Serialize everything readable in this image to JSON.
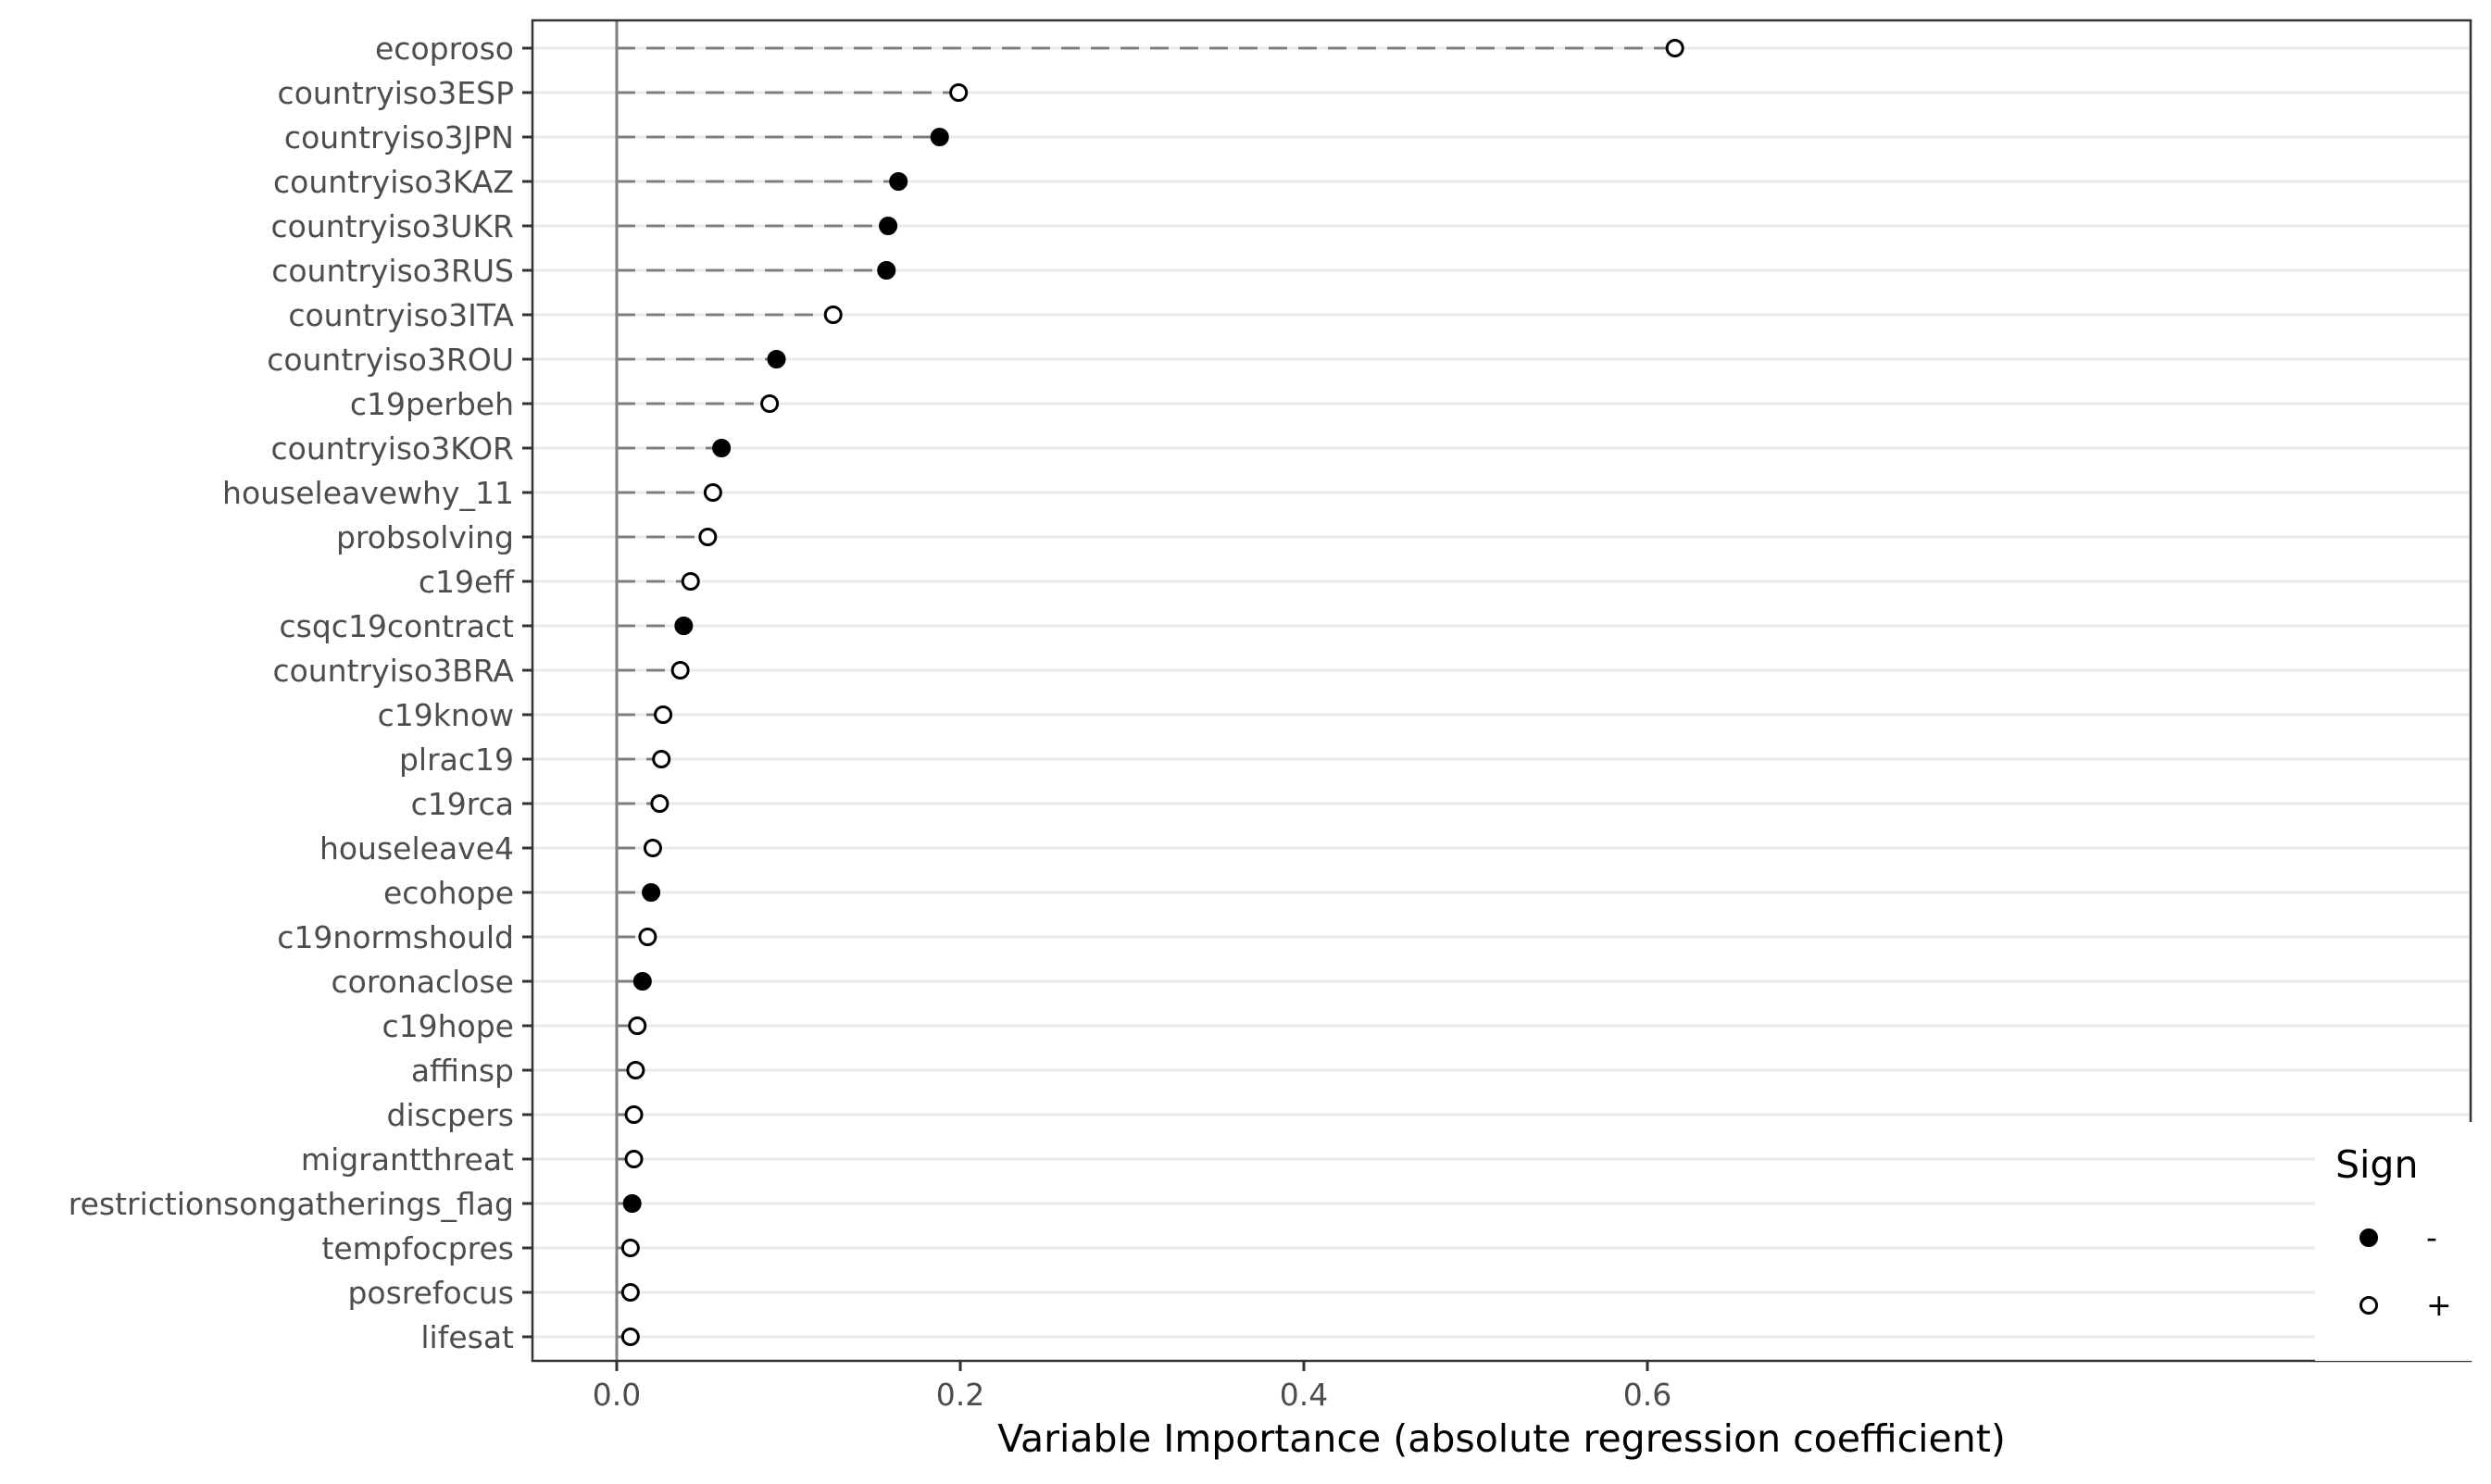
{
  "chart_data": {
    "type": "scatter",
    "subtype": "lollipop",
    "title": "",
    "xlabel": "Variable Importance (absolute regression coefficient)",
    "ylabel": "",
    "xlim": [
      -0.03,
      0.65
    ],
    "x_ticks": [
      0.0,
      0.2,
      0.4,
      0.6
    ],
    "x_tick_labels": [
      "0.0",
      "0.2",
      "0.4",
      "0.6"
    ],
    "grid": true,
    "zero_reference_line": true,
    "legend": {
      "title": "Sign",
      "position": "bottom-right",
      "entries": [
        {
          "label": "-",
          "marker": "filled-circle"
        },
        {
          "label": "+",
          "marker": "open-circle"
        }
      ]
    },
    "colors": {
      "marker": "#000000",
      "stem": "#7f7f7f",
      "zero_line": "#7f7f7f",
      "grid": "#ebebeb",
      "panel_border": "#333333"
    },
    "points": [
      {
        "variable": "ecoproso",
        "value": 0.616,
        "sign": "+"
      },
      {
        "variable": "countryiso3ESP",
        "value": 0.199,
        "sign": "+"
      },
      {
        "variable": "countryiso3JPN",
        "value": 0.188,
        "sign": "-"
      },
      {
        "variable": "countryiso3KAZ",
        "value": 0.164,
        "sign": "-"
      },
      {
        "variable": "countryiso3UKR",
        "value": 0.158,
        "sign": "-"
      },
      {
        "variable": "countryiso3RUS",
        "value": 0.157,
        "sign": "-"
      },
      {
        "variable": "countryiso3ITA",
        "value": 0.126,
        "sign": "+"
      },
      {
        "variable": "countryiso3ROU",
        "value": 0.093,
        "sign": "-"
      },
      {
        "variable": "c19perbeh",
        "value": 0.089,
        "sign": "+"
      },
      {
        "variable": "countryiso3KOR",
        "value": 0.061,
        "sign": "-"
      },
      {
        "variable": "houseleavewhy_11",
        "value": 0.056,
        "sign": "+"
      },
      {
        "variable": "probsolving",
        "value": 0.053,
        "sign": "+"
      },
      {
        "variable": "c19eff",
        "value": 0.043,
        "sign": "+"
      },
      {
        "variable": "csqc19contract",
        "value": 0.039,
        "sign": "-"
      },
      {
        "variable": "countryiso3BRA",
        "value": 0.037,
        "sign": "+"
      },
      {
        "variable": "c19know",
        "value": 0.027,
        "sign": "+"
      },
      {
        "variable": "plrac19",
        "value": 0.026,
        "sign": "+"
      },
      {
        "variable": "c19rca",
        "value": 0.025,
        "sign": "+"
      },
      {
        "variable": "houseleave4",
        "value": 0.021,
        "sign": "+"
      },
      {
        "variable": "ecohope",
        "value": 0.02,
        "sign": "-"
      },
      {
        "variable": "c19normshould",
        "value": 0.018,
        "sign": "+"
      },
      {
        "variable": "coronaclose",
        "value": 0.015,
        "sign": "-"
      },
      {
        "variable": "c19hope",
        "value": 0.012,
        "sign": "+"
      },
      {
        "variable": "affinsp",
        "value": 0.011,
        "sign": "+"
      },
      {
        "variable": "discpers",
        "value": 0.01,
        "sign": "+"
      },
      {
        "variable": "migrantthreat",
        "value": 0.01,
        "sign": "+"
      },
      {
        "variable": "restrictionsongatherings_flag",
        "value": 0.009,
        "sign": "-"
      },
      {
        "variable": "tempfocpres",
        "value": 0.008,
        "sign": "+"
      },
      {
        "variable": "posrefocus",
        "value": 0.008,
        "sign": "+"
      },
      {
        "variable": "lifesat",
        "value": 0.008,
        "sign": "+"
      }
    ]
  }
}
